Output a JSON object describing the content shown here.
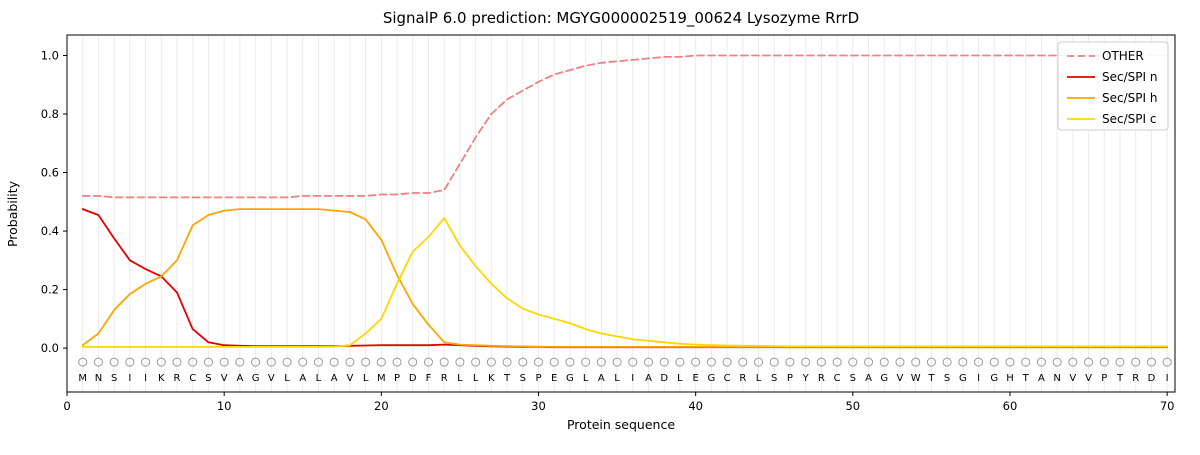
{
  "chart_data": {
    "type": "line",
    "title": "SignalP 6.0 prediction: MGYG000002519_00624 Lysozyme RrrD",
    "xlabel": "Protein sequence",
    "ylabel": "Probability",
    "xlim": [
      0,
      70.5
    ],
    "ylim": [
      -0.15,
      1.07
    ],
    "yticks": [
      0.0,
      0.2,
      0.4,
      0.6,
      0.8,
      1.0
    ],
    "xticks": [
      0,
      10,
      20,
      30,
      40,
      50,
      60,
      70
    ],
    "grid": "vertical-line-per-residue",
    "legend_position": "upper right",
    "sequence": "MNSIIKRCSVAGVLALAVLMPDFRLLKTSPEGLALIADLEGCRLSPYRCSAGVWTSGIGHTANVVPTRDI",
    "series": [
      {
        "name": "OTHER",
        "color": "#f08080",
        "dash": true,
        "values": [
          0.52,
          0.52,
          0.515,
          0.515,
          0.515,
          0.515,
          0.515,
          0.515,
          0.515,
          0.515,
          0.515,
          0.515,
          0.515,
          0.515,
          0.52,
          0.52,
          0.52,
          0.52,
          0.52,
          0.525,
          0.525,
          0.53,
          0.53,
          0.54,
          0.63,
          0.72,
          0.8,
          0.85,
          0.88,
          0.91,
          0.935,
          0.95,
          0.965,
          0.975,
          0.98,
          0.985,
          0.99,
          0.995,
          0.995,
          1.0,
          1.0,
          1.0,
          1.0,
          1.0,
          1.0,
          1.0,
          1.0,
          1.0,
          1.0,
          1.0,
          1.0,
          1.0,
          1.0,
          1.0,
          1.0,
          1.0,
          1.0,
          1.0,
          1.0,
          1.0,
          1.0,
          1.0,
          1.0,
          1.0,
          1.0,
          1.0,
          1.0,
          1.0,
          1.0,
          1.0
        ]
      },
      {
        "name": "Sec/SPI n",
        "color": "#e50000",
        "dash": false,
        "values": [
          0.475,
          0.455,
          0.375,
          0.3,
          0.27,
          0.245,
          0.19,
          0.065,
          0.02,
          0.01,
          0.008,
          0.007,
          0.007,
          0.007,
          0.007,
          0.007,
          0.007,
          0.008,
          0.009,
          0.01,
          0.01,
          0.01,
          0.01,
          0.012,
          0.01,
          0.008,
          0.006,
          0.005,
          0.004,
          0.004,
          0.003,
          0.003,
          0.003,
          0.003,
          0.003,
          0.003,
          0.003,
          0.003,
          0.003,
          0.003,
          0.003,
          0.003,
          0.003,
          0.003,
          0.003,
          0.003,
          0.003,
          0.003,
          0.003,
          0.003,
          0.003,
          0.003,
          0.003,
          0.003,
          0.003,
          0.003,
          0.003,
          0.003,
          0.003,
          0.003,
          0.003,
          0.003,
          0.003,
          0.003,
          0.003,
          0.003,
          0.003,
          0.003,
          0.003,
          0.003
        ]
      },
      {
        "name": "Sec/SPI h",
        "color": "#ffa500",
        "dash": false,
        "values": [
          0.01,
          0.05,
          0.13,
          0.185,
          0.22,
          0.245,
          0.3,
          0.42,
          0.455,
          0.47,
          0.475,
          0.475,
          0.475,
          0.475,
          0.475,
          0.475,
          0.47,
          0.465,
          0.44,
          0.37,
          0.25,
          0.15,
          0.08,
          0.02,
          0.012,
          0.01,
          0.008,
          0.007,
          0.006,
          0.005,
          0.004,
          0.004,
          0.004,
          0.004,
          0.004,
          0.004,
          0.004,
          0.004,
          0.004,
          0.004,
          0.004,
          0.004,
          0.004,
          0.004,
          0.004,
          0.004,
          0.004,
          0.004,
          0.004,
          0.004,
          0.004,
          0.004,
          0.004,
          0.004,
          0.004,
          0.004,
          0.004,
          0.004,
          0.004,
          0.004,
          0.004,
          0.004,
          0.004,
          0.004,
          0.004,
          0.004,
          0.004,
          0.004,
          0.004,
          0.004
        ]
      },
      {
        "name": "Sec/SPI c",
        "color": "#ffd700",
        "dash": false,
        "values": [
          0.004,
          0.004,
          0.004,
          0.004,
          0.004,
          0.004,
          0.004,
          0.004,
          0.004,
          0.004,
          0.004,
          0.004,
          0.004,
          0.004,
          0.004,
          0.004,
          0.005,
          0.01,
          0.05,
          0.1,
          0.22,
          0.33,
          0.38,
          0.445,
          0.35,
          0.28,
          0.22,
          0.17,
          0.135,
          0.115,
          0.1,
          0.085,
          0.065,
          0.05,
          0.04,
          0.03,
          0.025,
          0.02,
          0.015,
          0.012,
          0.01,
          0.009,
          0.008,
          0.008,
          0.007,
          0.006,
          0.006,
          0.006,
          0.006,
          0.006,
          0.006,
          0.006,
          0.006,
          0.006,
          0.006,
          0.006,
          0.006,
          0.006,
          0.006,
          0.006,
          0.006,
          0.006,
          0.006,
          0.006,
          0.006,
          0.006,
          0.006,
          0.006,
          0.006,
          0.006
        ]
      }
    ]
  }
}
